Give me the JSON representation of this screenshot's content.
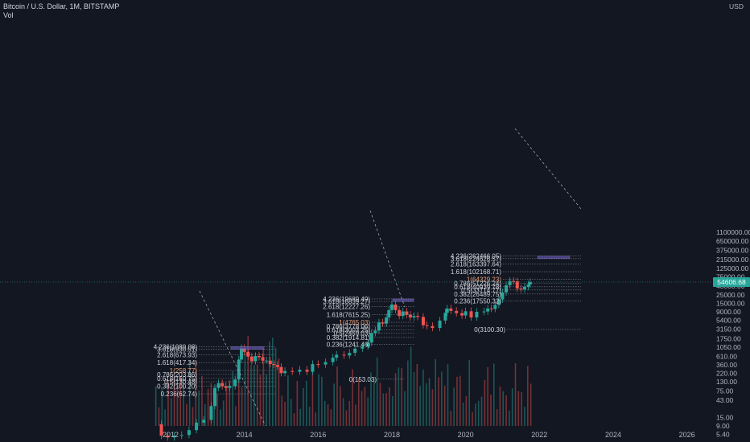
{
  "header": {
    "title": "Bitcoin / U.S. Dollar, 1M, BITSTAMP",
    "sub": "Vol"
  },
  "colors": {
    "background": "#131722",
    "up": "#26a69a",
    "down": "#ef5350",
    "fib_line": "#9598a1",
    "target_box": "#5b4ea8",
    "price_line": "#26a69a"
  },
  "chart_data": {
    "type": "candlestick",
    "title": "Bitcoin / U.S. Dollar, 1M, BITSTAMP",
    "scale": "log",
    "currency": "USD",
    "current_price": "54606.68",
    "y_ticks": [
      "1100000.00",
      "650000.00",
      "375000.00",
      "215000.00",
      "125000.00",
      "75000.00",
      "43000.00",
      "25000.00",
      "15000.00",
      "9000.00",
      "5400.00",
      "3150.00",
      "1750.00",
      "1050.00",
      "610.00",
      "360.00",
      "220.00",
      "130.00",
      "75.00",
      "43.00",
      "15.00",
      "9.00",
      "5.40"
    ],
    "x_ticks": [
      "2012",
      "2014",
      "2016",
      "2018",
      "2020",
      "2022",
      "2024",
      "2026"
    ],
    "fib_sets": [
      {
        "levels": [
          {
            "label": "4.236(1089.08)",
            "v": 1089.08
          },
          {
            "label": "3.618(930.51)",
            "v": 930.51
          },
          {
            "label": "2.618(673.93)",
            "v": 673.93
          },
          {
            "label": "1.618(417.34)",
            "v": 417.34
          },
          {
            "label": "1(258.77)",
            "v": 258.77,
            "hi": true
          },
          {
            "label": "0.786(203.86)",
            "v": 203.86
          },
          {
            "label": "0.618(160.75)",
            "v": 160.75
          },
          {
            "label": "0.5(130.48)",
            "v": 130.48
          },
          {
            "label": "0.382(100.20)",
            "v": 100.2
          },
          {
            "label": "0.236(62.74)",
            "v": 62.74
          }
        ],
        "box": [
          930.51,
          1089.08
        ]
      },
      {
        "levels": [
          {
            "label": "4.236(19689.49)",
            "v": 19689.49
          },
          {
            "label": "3.618(16839.27)",
            "v": 16839.27
          },
          {
            "label": "2.618(12227.26)",
            "v": 12227.26
          },
          {
            "label": "1.618(7615.25)",
            "v": 7615.25
          },
          {
            "label": "1(4765.03)",
            "v": 4765.03,
            "hi": true
          },
          {
            "label": "0.786(3778.06)",
            "v": 3778.06
          },
          {
            "label": "0.618(3003.25)",
            "v": 3003.25
          },
          {
            "label": "0.5(2459.03)",
            "v": 2459.03
          },
          {
            "label": "0.382(1914.81)",
            "v": 1914.81
          },
          {
            "label": "0.236(1241.46)",
            "v": 1241.46
          },
          {
            "label": "0(153.03)",
            "v": 153.03
          }
        ],
        "box": [
          16839.27,
          19689.49
        ]
      },
      {
        "levels": [
          {
            "label": "4.236(262466.05)",
            "v": 262466.05
          },
          {
            "label": "3.618(224626.57)",
            "v": 224626.57
          },
          {
            "label": "2.618(163397.64)",
            "v": 163397.64
          },
          {
            "label": "1.618(102168.71)",
            "v": 102168.71
          },
          {
            "label": "1(64329.23)",
            "v": 64329.23,
            "hi": true
          },
          {
            "label": "0.786(51226.24)",
            "v": 51226.24
          },
          {
            "label": "0.618(40939.78)",
            "v": 40939.78
          },
          {
            "label": "0.5(33714.77)",
            "v": 33714.77
          },
          {
            "label": "0.382(26489.75)",
            "v": 26489.75
          },
          {
            "label": "0.236(17550.32)",
            "v": 17550.32
          },
          {
            "label": "0(3100.30)",
            "v": 3100.3
          }
        ],
        "box": [
          224626.57,
          262466.05
        ]
      }
    ],
    "price_path": [
      [
        2011.58,
        10
      ],
      [
        2011.75,
        5
      ],
      [
        2011.92,
        4.5
      ],
      [
        2012.1,
        5
      ],
      [
        2012.3,
        5.2
      ],
      [
        2012.5,
        7
      ],
      [
        2012.7,
        11
      ],
      [
        2012.9,
        13
      ],
      [
        2013.1,
        30
      ],
      [
        2013.2,
        90
      ],
      [
        2013.3,
        120
      ],
      [
        2013.4,
        100
      ],
      [
        2013.5,
        90
      ],
      [
        2013.6,
        100
      ],
      [
        2013.75,
        150
      ],
      [
        2013.85,
        500
      ],
      [
        2013.92,
        1000
      ],
      [
        2014.0,
        800
      ],
      [
        2014.1,
        600
      ],
      [
        2014.2,
        450
      ],
      [
        2014.3,
        620
      ],
      [
        2014.4,
        580
      ],
      [
        2014.5,
        470
      ],
      [
        2014.6,
        470
      ],
      [
        2014.7,
        380
      ],
      [
        2014.8,
        360
      ],
      [
        2014.9,
        320
      ],
      [
        2015.0,
        220
      ],
      [
        2015.1,
        250
      ],
      [
        2015.3,
        240
      ],
      [
        2015.5,
        270
      ],
      [
        2015.7,
        240
      ],
      [
        2015.85,
        380
      ],
      [
        2016.0,
        370
      ],
      [
        2016.2,
        430
      ],
      [
        2016.4,
        560
      ],
      [
        2016.5,
        670
      ],
      [
        2016.7,
        640
      ],
      [
        2016.85,
        750
      ],
      [
        2017.0,
        970
      ],
      [
        2017.2,
        1100
      ],
      [
        2017.35,
        1400
      ],
      [
        2017.45,
        2500
      ],
      [
        2017.55,
        2900
      ],
      [
        2017.65,
        4700
      ],
      [
        2017.75,
        4400
      ],
      [
        2017.85,
        6400
      ],
      [
        2017.92,
        10000
      ],
      [
        2018.0,
        14000
      ],
      [
        2018.1,
        10000
      ],
      [
        2018.2,
        7000
      ],
      [
        2018.3,
        9200
      ],
      [
        2018.4,
        7500
      ],
      [
        2018.5,
        6400
      ],
      [
        2018.6,
        7000
      ],
      [
        2018.7,
        6600
      ],
      [
        2018.85,
        4000
      ],
      [
        2018.95,
        3800
      ],
      [
        2019.1,
        3400
      ],
      [
        2019.3,
        5300
      ],
      [
        2019.45,
        8500
      ],
      [
        2019.5,
        11000
      ],
      [
        2019.6,
        9500
      ],
      [
        2019.75,
        8300
      ],
      [
        2019.9,
        7200
      ],
      [
        2020.0,
        9300
      ],
      [
        2020.15,
        6400
      ],
      [
        2020.3,
        9000
      ],
      [
        2020.5,
        9200
      ],
      [
        2020.6,
        11000
      ],
      [
        2020.7,
        10700
      ],
      [
        2020.8,
        13700
      ],
      [
        2020.9,
        19000
      ],
      [
        2021.0,
        29000
      ],
      [
        2021.1,
        45000
      ],
      [
        2021.2,
        58000
      ],
      [
        2021.3,
        57000
      ],
      [
        2021.4,
        37000
      ],
      [
        2021.5,
        35000
      ],
      [
        2021.6,
        41000
      ],
      [
        2021.7,
        47000
      ],
      [
        2021.75,
        54606
      ]
    ]
  }
}
